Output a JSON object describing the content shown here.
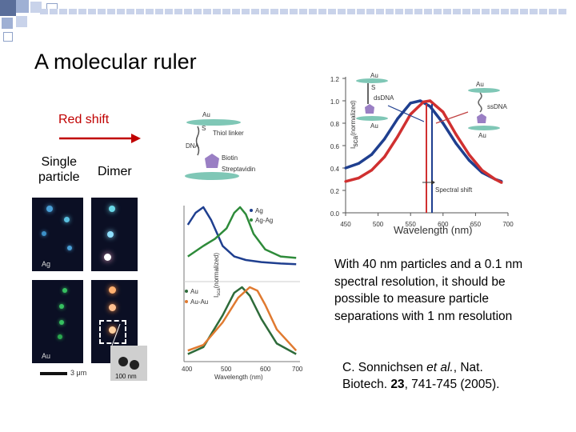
{
  "slide": {
    "title": "A molecular ruler",
    "red_shift": "Red shift",
    "single_particle": "Single\nparticle",
    "dimer": "Dimer"
  },
  "schematic": {
    "au_top": "Au",
    "thiol_linker": "Thiol linker",
    "s": "S",
    "dna": "DNA",
    "biotin": "Biotin",
    "streptavidin": "Streptavidin"
  },
  "micrographs": {
    "ag_label": "Ag",
    "au_label": "Au",
    "scale_bar": "3 μm",
    "sem_scale": "100 nm"
  },
  "chart_top_right": {
    "ylabel": "I",
    "ylabel_sub": "sca",
    "ylabel_rest": "(normalized)",
    "xlabel": "Wavelength (nm)",
    "yticks": [
      "1.2",
      "1.0",
      "0.8",
      "0.6",
      "0.4",
      "0.2",
      "0.0"
    ],
    "xticks": [
      "450",
      "500",
      "550",
      "600",
      "650",
      "700"
    ],
    "annotation_shift": "Spectral shift",
    "ds_label": "dsDNA",
    "ss_label": "ssDNA",
    "au": "Au",
    "s": "S"
  },
  "chart_middle": {
    "ylabel": "I",
    "ylabel_sub": "sca",
    "ylabel_rest": "(normalized)",
    "xlabel": "Wavelength (nm)",
    "xticks": [
      "400",
      "500",
      "600",
      "700"
    ],
    "legend_top": [
      "Ag",
      "Ag-Ag"
    ],
    "legend_bottom": [
      "Au",
      "Au-Au"
    ]
  },
  "caption": "With 40 nm particles and a 0.1 nm spectral resolution, it should be possible to measure particle separations with 1 nm resolution",
  "citation": {
    "authors": "C. Sonnichsen ",
    "etal": "et al.",
    "rest1": ", Nat.",
    "line2a": "Biotech. ",
    "vol": "23",
    "line2b": ", 741-745 (2005)."
  },
  "colors": {
    "accent_blue": "#1f3f8f",
    "accent_red": "#c00000",
    "green": "#2e8b3a",
    "deco_square": "#5a6e9a"
  },
  "chart_data": [
    {
      "type": "line",
      "xlabel": "Wavelength (nm)",
      "ylabel": "Isca (normalized)",
      "xlim": [
        450,
        700
      ],
      "ylim": [
        0.0,
        1.2
      ],
      "series": [
        {
          "name": "dsDNA",
          "x": [
            450,
            470,
            490,
            510,
            530,
            550,
            565,
            580,
            600,
            620,
            640,
            660,
            680,
            690
          ],
          "y": [
            0.4,
            0.44,
            0.52,
            0.66,
            0.84,
            0.98,
            1.0,
            0.95,
            0.8,
            0.62,
            0.47,
            0.36,
            0.3,
            0.28
          ]
        },
        {
          "name": "ssDNA",
          "x": [
            450,
            470,
            490,
            510,
            530,
            550,
            570,
            580,
            600,
            620,
            640,
            660,
            680,
            690
          ],
          "y": [
            0.28,
            0.31,
            0.38,
            0.5,
            0.68,
            0.88,
            0.99,
            1.0,
            0.9,
            0.7,
            0.52,
            0.38,
            0.3,
            0.27
          ]
        }
      ]
    },
    {
      "type": "line",
      "xlabel": "Wavelength (nm)",
      "ylabel": "Isca (normalized)",
      "xlim": [
        400,
        700
      ],
      "series": [
        {
          "name": "Ag",
          "x": [
            410,
            430,
            450,
            470,
            500,
            530,
            560,
            600,
            650,
            690
          ],
          "y": [
            0.75,
            0.92,
            1.0,
            0.82,
            0.45,
            0.3,
            0.25,
            0.22,
            0.2,
            0.19
          ]
        },
        {
          "name": "Ag-Ag",
          "x": [
            410,
            450,
            480,
            510,
            530,
            545,
            560,
            580,
            610,
            650,
            690
          ],
          "y": [
            0.3,
            0.45,
            0.55,
            0.7,
            0.92,
            1.0,
            0.9,
            0.62,
            0.4,
            0.3,
            0.28
          ]
        },
        {
          "name": "Au",
          "x": [
            410,
            450,
            500,
            530,
            550,
            570,
            600,
            640,
            690
          ],
          "y": [
            0.05,
            0.15,
            0.6,
            0.92,
            1.0,
            0.88,
            0.55,
            0.2,
            0.05
          ]
        },
        {
          "name": "Au-Au",
          "x": [
            410,
            450,
            500,
            540,
            570,
            590,
            610,
            640,
            690
          ],
          "y": [
            0.1,
            0.18,
            0.5,
            0.85,
            1.0,
            0.95,
            0.75,
            0.4,
            0.1
          ]
        }
      ]
    }
  ]
}
